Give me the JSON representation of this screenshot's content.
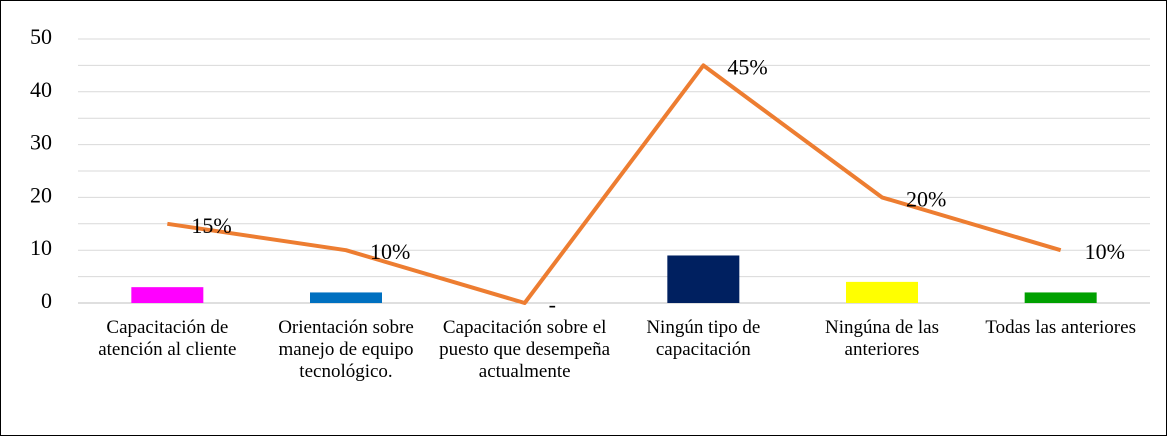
{
  "chart_data": {
    "type": "bar-line",
    "categories": [
      "Capacitación de atención al cliente",
      "Orientación sobre manejo de equipo tecnológico.",
      "Capacitación sobre el puesto que desempeña actualmente",
      "Ningún tipo de capacitación",
      "Ningúna de las anteriores",
      "Todas las anteriores"
    ],
    "bars": {
      "values": [
        3,
        2,
        0,
        9,
        4,
        2
      ],
      "colors": [
        "#ff00ff",
        "#0070c0",
        "#7f7f7f",
        "#002060",
        "#ffff00",
        "#00a000"
      ]
    },
    "line": {
      "values": [
        15,
        10,
        0,
        45,
        20,
        10
      ],
      "value_labels": [
        "15%",
        "10%",
        "-",
        "45%",
        "20%",
        "10%"
      ],
      "color": "#ed7d31"
    },
    "ylim": [
      0,
      50
    ],
    "yticks": [
      0,
      10,
      20,
      30,
      40,
      50
    ],
    "minor_gridlines": [
      5,
      15,
      25,
      35,
      45
    ],
    "grid": true
  }
}
